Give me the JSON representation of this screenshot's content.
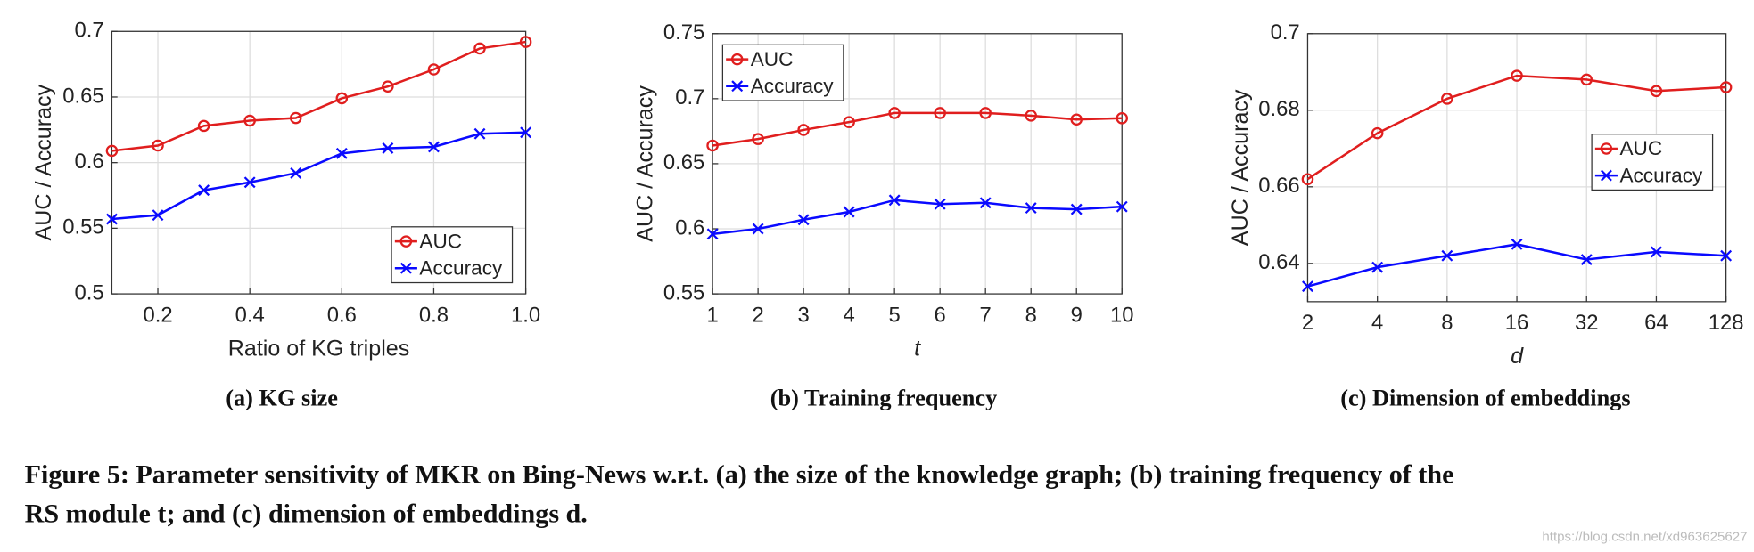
{
  "chart_data": [
    {
      "type": "line",
      "xlabel": "Ratio of KG triples",
      "ylabel": "AUC / Accuracy",
      "caption": "(a) KG size",
      "x": [
        0.1,
        0.2,
        0.3,
        0.4,
        0.5,
        0.6,
        0.7,
        0.8,
        0.9,
        1.0
      ],
      "series": [
        {
          "name": "AUC",
          "color": "#e01e1e",
          "marker": "circle",
          "values": [
            0.609,
            0.613,
            0.628,
            0.632,
            0.634,
            0.649,
            0.658,
            0.671,
            0.687,
            0.692
          ]
        },
        {
          "name": "Accuracy",
          "color": "#0a0aff",
          "marker": "x",
          "values": [
            0.557,
            0.56,
            0.579,
            0.585,
            0.592,
            0.607,
            0.611,
            0.612,
            0.622,
            0.623
          ]
        }
      ],
      "xlim": [
        0.1,
        1.0
      ],
      "xticks": [
        0.2,
        0.4,
        0.6,
        0.8,
        {
          "value": 1.0,
          "label": "1.0"
        }
      ],
      "ylim": [
        0.5,
        0.7
      ],
      "yticks": [
        0.5,
        0.55,
        0.6,
        0.65,
        0.7
      ],
      "grid": true,
      "legend": "lower right"
    },
    {
      "type": "line",
      "xlabel": "t",
      "ylabel": "AUC / Accuracy",
      "caption": "(b) Training frequency",
      "x": [
        1,
        2,
        3,
        4,
        5,
        6,
        7,
        8,
        9,
        10
      ],
      "series": [
        {
          "name": "AUC",
          "color": "#e01e1e",
          "marker": "circle",
          "values": [
            0.664,
            0.669,
            0.676,
            0.682,
            0.689,
            0.689,
            0.689,
            0.687,
            0.684,
            0.685
          ]
        },
        {
          "name": "Accuracy",
          "color": "#0a0aff",
          "marker": "x",
          "values": [
            0.596,
            0.6,
            0.607,
            0.613,
            0.622,
            0.619,
            0.62,
            0.616,
            0.615,
            0.617
          ]
        }
      ],
      "xlim": [
        1,
        10
      ],
      "xticks": [
        1,
        2,
        3,
        4,
        5,
        6,
        7,
        8,
        9,
        10
      ],
      "ylim": [
        0.55,
        0.75
      ],
      "yticks": [
        0.55,
        0.6,
        0.65,
        0.7,
        0.75
      ],
      "grid": true,
      "legend": "upper left"
    },
    {
      "type": "line",
      "xlabel": "d",
      "ylabel": "AUC / Accuracy",
      "caption": "(c) Dimension of embeddings",
      "x": [
        2,
        4,
        8,
        16,
        32,
        64,
        128
      ],
      "xscale": "log",
      "series": [
        {
          "name": "AUC",
          "color": "#e01e1e",
          "marker": "circle",
          "values": [
            0.662,
            0.674,
            0.683,
            0.689,
            0.688,
            0.685,
            0.686
          ]
        },
        {
          "name": "Accuracy",
          "color": "#0a0aff",
          "marker": "x",
          "values": [
            0.634,
            0.639,
            0.642,
            0.645,
            0.641,
            0.643,
            0.642
          ]
        }
      ],
      "xlim": [
        2,
        128
      ],
      "xticks": [
        2,
        4,
        8,
        16,
        32,
        64,
        128
      ],
      "ylim": [
        0.63,
        0.7
      ],
      "yticks": [
        0.64,
        0.66,
        0.68,
        0.7
      ],
      "grid": true,
      "legend": "center right"
    }
  ],
  "figure_caption": [
    "Figure 5: Parameter sensitivity of MKR on Bing-News w.r.t. (a) the size of the knowledge graph; (b) training frequency of the",
    "RS module t; and (c) dimension of embeddings d."
  ],
  "watermark": "https://blog.csdn.net/xd963625627"
}
